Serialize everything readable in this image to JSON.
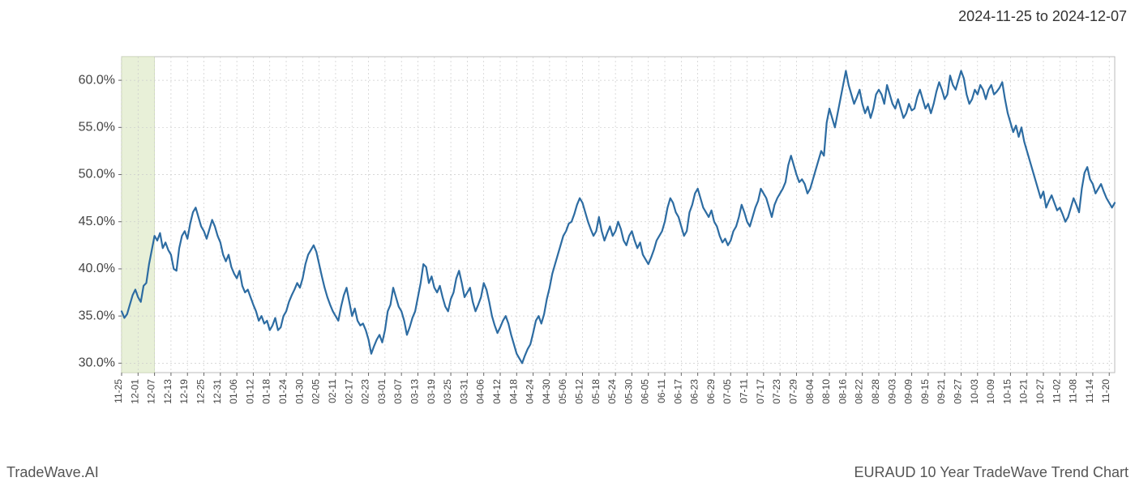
{
  "header": {
    "date_range": "2024-11-25 to 2024-12-07"
  },
  "footer": {
    "left": "TradeWave.AI",
    "right": "EURAUD 10 Year TradeWave Trend Chart"
  },
  "chart": {
    "type": "line",
    "background_color": "#ffffff",
    "grid_color": "#cccccc",
    "grid_dash": "2,3",
    "line_color": "#2d6ca2",
    "line_width": 2.2,
    "highlight_band": {
      "start_label": "11-25",
      "end_label": "12-07",
      "fill": "#e8f0d8",
      "stroke": "#c0d0a0"
    },
    "y_axis": {
      "min": 29.0,
      "max": 62.5,
      "ticks": [
        30.0,
        35.0,
        40.0,
        45.0,
        50.0,
        55.0,
        60.0
      ],
      "tick_format_suffix": "%",
      "label_fontsize": 16,
      "label_color": "#444444"
    },
    "x_axis": {
      "labels": [
        "11-25",
        "12-01",
        "12-07",
        "12-13",
        "12-19",
        "12-25",
        "12-31",
        "01-06",
        "01-12",
        "01-18",
        "01-24",
        "01-30",
        "02-05",
        "02-11",
        "02-17",
        "02-23",
        "03-01",
        "03-07",
        "03-13",
        "03-19",
        "03-25",
        "03-31",
        "04-06",
        "04-12",
        "04-18",
        "04-24",
        "04-30",
        "05-06",
        "05-12",
        "05-18",
        "05-24",
        "05-30",
        "06-05",
        "06-11",
        "06-17",
        "06-23",
        "06-29",
        "07-05",
        "07-11",
        "07-17",
        "07-23",
        "07-29",
        "08-04",
        "08-10",
        "08-16",
        "08-22",
        "08-28",
        "09-03",
        "09-09",
        "09-15",
        "09-21",
        "09-27",
        "10-03",
        "10-09",
        "10-15",
        "10-21",
        "10-27",
        "11-02",
        "11-08",
        "11-14",
        "11-20"
      ],
      "label_fontsize": 12,
      "label_rotation": -90,
      "label_color": "#444444"
    },
    "series": [
      {
        "name": "trend",
        "x_labels": [
          "11-25",
          "11-26",
          "11-27",
          "11-28",
          "11-29",
          "11-30",
          "12-01",
          "12-02",
          "12-03",
          "12-04",
          "12-05",
          "12-06",
          "12-07",
          "12-08",
          "12-09",
          "12-10",
          "12-11",
          "12-12",
          "12-13",
          "12-14",
          "12-15",
          "12-16",
          "12-17",
          "12-18",
          "12-19",
          "12-20",
          "12-21",
          "12-22",
          "12-23",
          "12-24",
          "12-25",
          "12-26",
          "12-27",
          "12-28",
          "12-29",
          "12-30",
          "12-31",
          "01-01",
          "01-02",
          "01-03",
          "01-04",
          "01-05",
          "01-06",
          "01-07",
          "01-08",
          "01-09",
          "01-10",
          "01-11",
          "01-12",
          "01-13",
          "01-14",
          "01-15",
          "01-16",
          "01-17",
          "01-18",
          "01-19",
          "01-20",
          "01-21",
          "01-22",
          "01-23",
          "01-24",
          "01-25",
          "01-26",
          "01-27",
          "01-28",
          "01-29",
          "01-30",
          "01-31",
          "02-01",
          "02-02",
          "02-03",
          "02-04",
          "02-05",
          "02-06",
          "02-07",
          "02-08",
          "02-09",
          "02-10",
          "02-11",
          "02-12",
          "02-13",
          "02-14",
          "02-15",
          "02-16",
          "02-17",
          "02-18",
          "02-19",
          "02-20",
          "02-21",
          "02-22",
          "02-23",
          "02-24",
          "02-25",
          "02-26",
          "02-27",
          "02-28",
          "03-01",
          "03-02",
          "03-03",
          "03-04",
          "03-05",
          "03-06",
          "03-07",
          "03-08",
          "03-09",
          "03-10",
          "03-11",
          "03-12",
          "03-13",
          "03-14",
          "03-15",
          "03-16",
          "03-17",
          "03-18",
          "03-19",
          "03-20",
          "03-21",
          "03-22",
          "03-23",
          "03-24",
          "03-25",
          "03-26",
          "03-27",
          "03-28",
          "03-29",
          "03-30",
          "03-31",
          "04-01",
          "04-02",
          "04-03",
          "04-04",
          "04-05",
          "04-06",
          "04-07",
          "04-08",
          "04-09",
          "04-10",
          "04-11",
          "04-12",
          "04-13",
          "04-14",
          "04-15",
          "04-16",
          "04-17",
          "04-18",
          "04-19",
          "04-20",
          "04-21",
          "04-22",
          "04-23",
          "04-24",
          "04-25",
          "04-26",
          "04-27",
          "04-28",
          "04-29",
          "04-30",
          "05-01",
          "05-02",
          "05-03",
          "05-04",
          "05-05",
          "05-06",
          "05-07",
          "05-08",
          "05-09",
          "05-10",
          "05-11",
          "05-12",
          "05-13",
          "05-14",
          "05-15",
          "05-16",
          "05-17",
          "05-18",
          "05-19",
          "05-20",
          "05-21",
          "05-22",
          "05-23",
          "05-24",
          "05-25",
          "05-26",
          "05-27",
          "05-28",
          "05-29",
          "05-30",
          "05-31",
          "06-01",
          "06-02",
          "06-03",
          "06-04",
          "06-05",
          "06-06",
          "06-07",
          "06-08",
          "06-09",
          "06-10",
          "06-11",
          "06-12",
          "06-13",
          "06-14",
          "06-15",
          "06-16",
          "06-17",
          "06-18",
          "06-19",
          "06-20",
          "06-21",
          "06-22",
          "06-23",
          "06-24",
          "06-25",
          "06-26",
          "06-27",
          "06-28",
          "06-29",
          "06-30",
          "07-01",
          "07-02",
          "07-03",
          "07-04",
          "07-05",
          "07-06",
          "07-07",
          "07-08",
          "07-09",
          "07-10",
          "07-11",
          "07-12",
          "07-13",
          "07-14",
          "07-15",
          "07-16",
          "07-17",
          "07-18",
          "07-19",
          "07-20",
          "07-21",
          "07-22",
          "07-23",
          "07-24",
          "07-25",
          "07-26",
          "07-27",
          "07-28",
          "07-29",
          "07-30",
          "07-31",
          "08-01",
          "08-02",
          "08-03",
          "08-04",
          "08-05",
          "08-06",
          "08-07",
          "08-08",
          "08-09",
          "08-10",
          "08-11",
          "08-12",
          "08-13",
          "08-14",
          "08-15",
          "08-16",
          "08-17",
          "08-18",
          "08-19",
          "08-20",
          "08-21",
          "08-22",
          "08-23",
          "08-24",
          "08-25",
          "08-26",
          "08-27",
          "08-28",
          "08-29",
          "08-30",
          "08-31",
          "09-01",
          "09-02",
          "09-03",
          "09-04",
          "09-05",
          "09-06",
          "09-07",
          "09-08",
          "09-09",
          "09-10",
          "09-11",
          "09-12",
          "09-13",
          "09-14",
          "09-15",
          "09-16",
          "09-17",
          "09-18",
          "09-19",
          "09-20",
          "09-21",
          "09-22",
          "09-23",
          "09-24",
          "09-25",
          "09-26",
          "09-27",
          "09-28",
          "09-29",
          "09-30",
          "10-01",
          "10-02",
          "10-03",
          "10-04",
          "10-05",
          "10-06",
          "10-07",
          "10-08",
          "10-09",
          "10-10",
          "10-11",
          "10-12",
          "10-13",
          "10-14",
          "10-15",
          "10-16",
          "10-17",
          "10-18",
          "10-19",
          "10-20",
          "10-21",
          "10-22",
          "10-23",
          "10-24",
          "10-25",
          "10-26",
          "10-27",
          "10-28",
          "10-29",
          "10-30",
          "10-31",
          "11-01",
          "11-02",
          "11-03",
          "11-04",
          "11-05",
          "11-06",
          "11-07",
          "11-08",
          "11-09",
          "11-10",
          "11-11",
          "11-12",
          "11-13",
          "11-14",
          "11-15",
          "11-16",
          "11-17",
          "11-18",
          "11-19",
          "11-20",
          "11-21",
          "11-22",
          "11-23"
        ],
        "y": [
          35.5,
          34.8,
          35.2,
          36.2,
          37.2,
          37.8,
          37.0,
          36.5,
          38.2,
          38.5,
          40.5,
          42.0,
          43.5,
          43.0,
          43.8,
          42.2,
          42.8,
          42.0,
          41.5,
          40.0,
          39.8,
          42.2,
          43.5,
          44.0,
          43.2,
          44.8,
          46.0,
          46.5,
          45.5,
          44.5,
          44.0,
          43.2,
          44.2,
          45.2,
          44.5,
          43.5,
          42.8,
          41.5,
          40.8,
          41.5,
          40.2,
          39.5,
          39.0,
          39.8,
          38.2,
          37.5,
          37.8,
          37.0,
          36.2,
          35.5,
          34.5,
          35.0,
          34.2,
          34.5,
          33.5,
          34.0,
          34.8,
          33.5,
          33.8,
          35.0,
          35.5,
          36.5,
          37.2,
          37.8,
          38.5,
          38.0,
          39.0,
          40.5,
          41.5,
          42.0,
          42.5,
          41.8,
          40.5,
          39.2,
          38.0,
          37.0,
          36.2,
          35.5,
          35.0,
          34.5,
          36.0,
          37.2,
          38.0,
          36.5,
          35.0,
          35.8,
          34.5,
          34.0,
          34.2,
          33.5,
          32.5,
          31.0,
          31.8,
          32.5,
          33.0,
          32.2,
          33.5,
          35.5,
          36.2,
          38.0,
          37.0,
          36.0,
          35.5,
          34.5,
          33.0,
          33.8,
          34.8,
          35.5,
          37.0,
          38.5,
          40.5,
          40.2,
          38.5,
          39.2,
          38.0,
          37.5,
          38.2,
          37.0,
          36.0,
          35.5,
          36.8,
          37.5,
          39.0,
          39.8,
          38.5,
          37.0,
          37.5,
          38.0,
          36.5,
          35.5,
          36.2,
          37.0,
          38.5,
          37.8,
          36.5,
          35.0,
          34.0,
          33.2,
          33.8,
          34.5,
          35.0,
          34.2,
          33.0,
          32.0,
          31.0,
          30.5,
          30.0,
          30.8,
          31.5,
          32.0,
          33.2,
          34.5,
          35.0,
          34.2,
          35.2,
          36.8,
          38.0,
          39.5,
          40.5,
          41.5,
          42.5,
          43.5,
          44.0,
          44.8,
          45.0,
          45.8,
          46.8,
          47.5,
          47.0,
          46.0,
          45.0,
          44.2,
          43.5,
          44.0,
          45.5,
          44.0,
          43.0,
          43.8,
          44.5,
          43.5,
          44.0,
          45.0,
          44.2,
          43.0,
          42.5,
          43.5,
          44.0,
          43.0,
          42.2,
          42.8,
          41.5,
          41.0,
          40.5,
          41.2,
          42.0,
          43.0,
          43.5,
          44.0,
          45.0,
          46.5,
          47.5,
          47.0,
          46.0,
          45.5,
          44.5,
          43.5,
          44.0,
          46.0,
          46.8,
          48.0,
          48.5,
          47.5,
          46.5,
          46.0,
          45.5,
          46.2,
          45.0,
          44.5,
          43.5,
          42.8,
          43.2,
          42.5,
          43.0,
          44.0,
          44.5,
          45.5,
          46.8,
          46.0,
          45.0,
          44.5,
          45.5,
          46.5,
          47.2,
          48.5,
          48.0,
          47.5,
          46.5,
          45.5,
          46.8,
          47.5,
          48.0,
          48.5,
          49.2,
          51.0,
          52.0,
          51.0,
          50.0,
          49.2,
          49.5,
          49.0,
          48.0,
          48.5,
          49.5,
          50.5,
          51.5,
          52.5,
          52.0,
          55.5,
          57.0,
          56.0,
          55.0,
          56.5,
          58.0,
          59.5,
          61.0,
          59.5,
          58.5,
          57.5,
          58.2,
          59.0,
          57.5,
          56.5,
          57.2,
          56.0,
          57.0,
          58.5,
          59.0,
          58.5,
          57.5,
          59.5,
          58.5,
          57.5,
          57.0,
          58.0,
          57.0,
          56.0,
          56.5,
          57.5,
          56.8,
          57.0,
          58.2,
          59.0,
          58.0,
          57.0,
          57.5,
          56.5,
          57.5,
          58.8,
          59.8,
          59.0,
          58.0,
          58.5,
          60.5,
          59.5,
          59.0,
          60.0,
          61.0,
          60.2,
          58.5,
          57.5,
          58.0,
          59.0,
          58.5,
          59.5,
          59.0,
          58.0,
          59.0,
          59.5,
          58.5,
          58.8,
          59.2,
          59.8,
          58.0,
          56.5,
          55.5,
          54.5,
          55.2,
          54.0,
          55.0,
          53.5,
          52.5,
          51.5,
          50.5,
          49.5,
          48.5,
          47.5,
          48.2,
          46.5,
          47.2,
          47.8,
          47.0,
          46.2,
          46.5,
          45.8,
          45.0,
          45.5,
          46.5,
          47.5,
          46.8,
          46.0,
          48.5,
          50.2,
          50.8,
          49.5,
          49.0,
          48.0,
          48.5,
          49.0,
          48.2,
          47.5,
          47.0,
          46.5,
          47.0
        ]
      }
    ]
  }
}
